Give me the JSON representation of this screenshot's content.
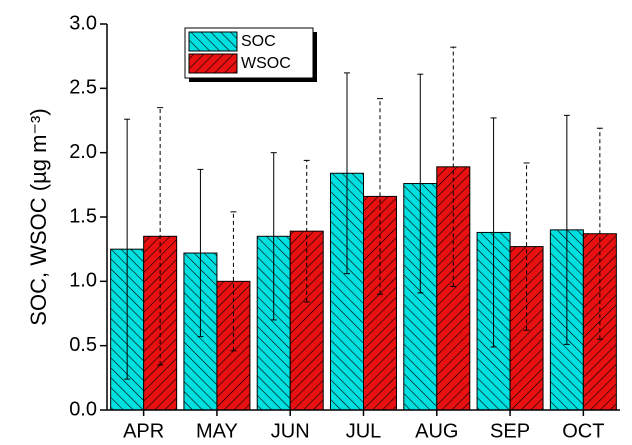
{
  "chart_data": {
    "type": "bar",
    "ylabel": "SOC, WSOC (µg m⁻³)",
    "categories": [
      "APR",
      "MAY",
      "JUN",
      "JUL",
      "AUG",
      "SEP",
      "OCT"
    ],
    "series": [
      {
        "name": "SOC",
        "color": "#00e0e0",
        "values": [
          1.25,
          1.22,
          1.35,
          1.84,
          1.76,
          1.38,
          1.4
        ],
        "errors": [
          1.01,
          0.65,
          0.65,
          0.78,
          0.85,
          0.89,
          0.89
        ],
        "error_style": "solid"
      },
      {
        "name": "WSOC",
        "color": "#e81010",
        "values": [
          1.35,
          1.0,
          1.39,
          1.66,
          1.89,
          1.27,
          1.37
        ],
        "errors": [
          1.0,
          0.54,
          0.55,
          0.76,
          0.93,
          0.65,
          0.82
        ],
        "error_style": "dashed"
      }
    ],
    "ylim": [
      0,
      3.0
    ],
    "yticks": [
      {
        "value": 0,
        "label": "0.0"
      },
      0.5,
      {
        "value": 1,
        "label": "1.0"
      },
      1.5,
      {
        "value": 2,
        "label": "2.0"
      },
      2.5,
      {
        "value": 3,
        "label": "3.0"
      }
    ],
    "legend": "upper-left"
  }
}
